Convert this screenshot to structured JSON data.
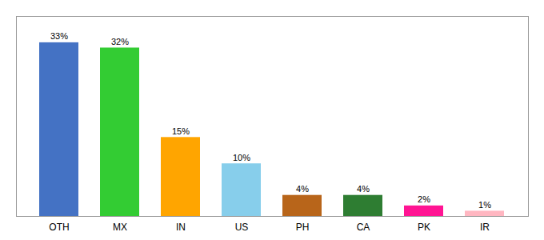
{
  "chart_data": {
    "type": "bar",
    "categories": [
      "OTH",
      "MX",
      "IN",
      "US",
      "PH",
      "CA",
      "PK",
      "IR"
    ],
    "values": [
      33,
      32,
      15,
      10,
      4,
      4,
      2,
      1
    ],
    "value_labels": [
      "33%",
      "32%",
      "15%",
      "10%",
      "4%",
      "4%",
      "2%",
      "1%"
    ],
    "colors": [
      "#4472C4",
      "#33CC33",
      "#FFA500",
      "#87CEEB",
      "#B8651A",
      "#2E7D32",
      "#FF1493",
      "#FFB6C1"
    ],
    "ylim": [
      0,
      38
    ],
    "data_labels": true,
    "tick_labels": "x",
    "grid": false
  }
}
